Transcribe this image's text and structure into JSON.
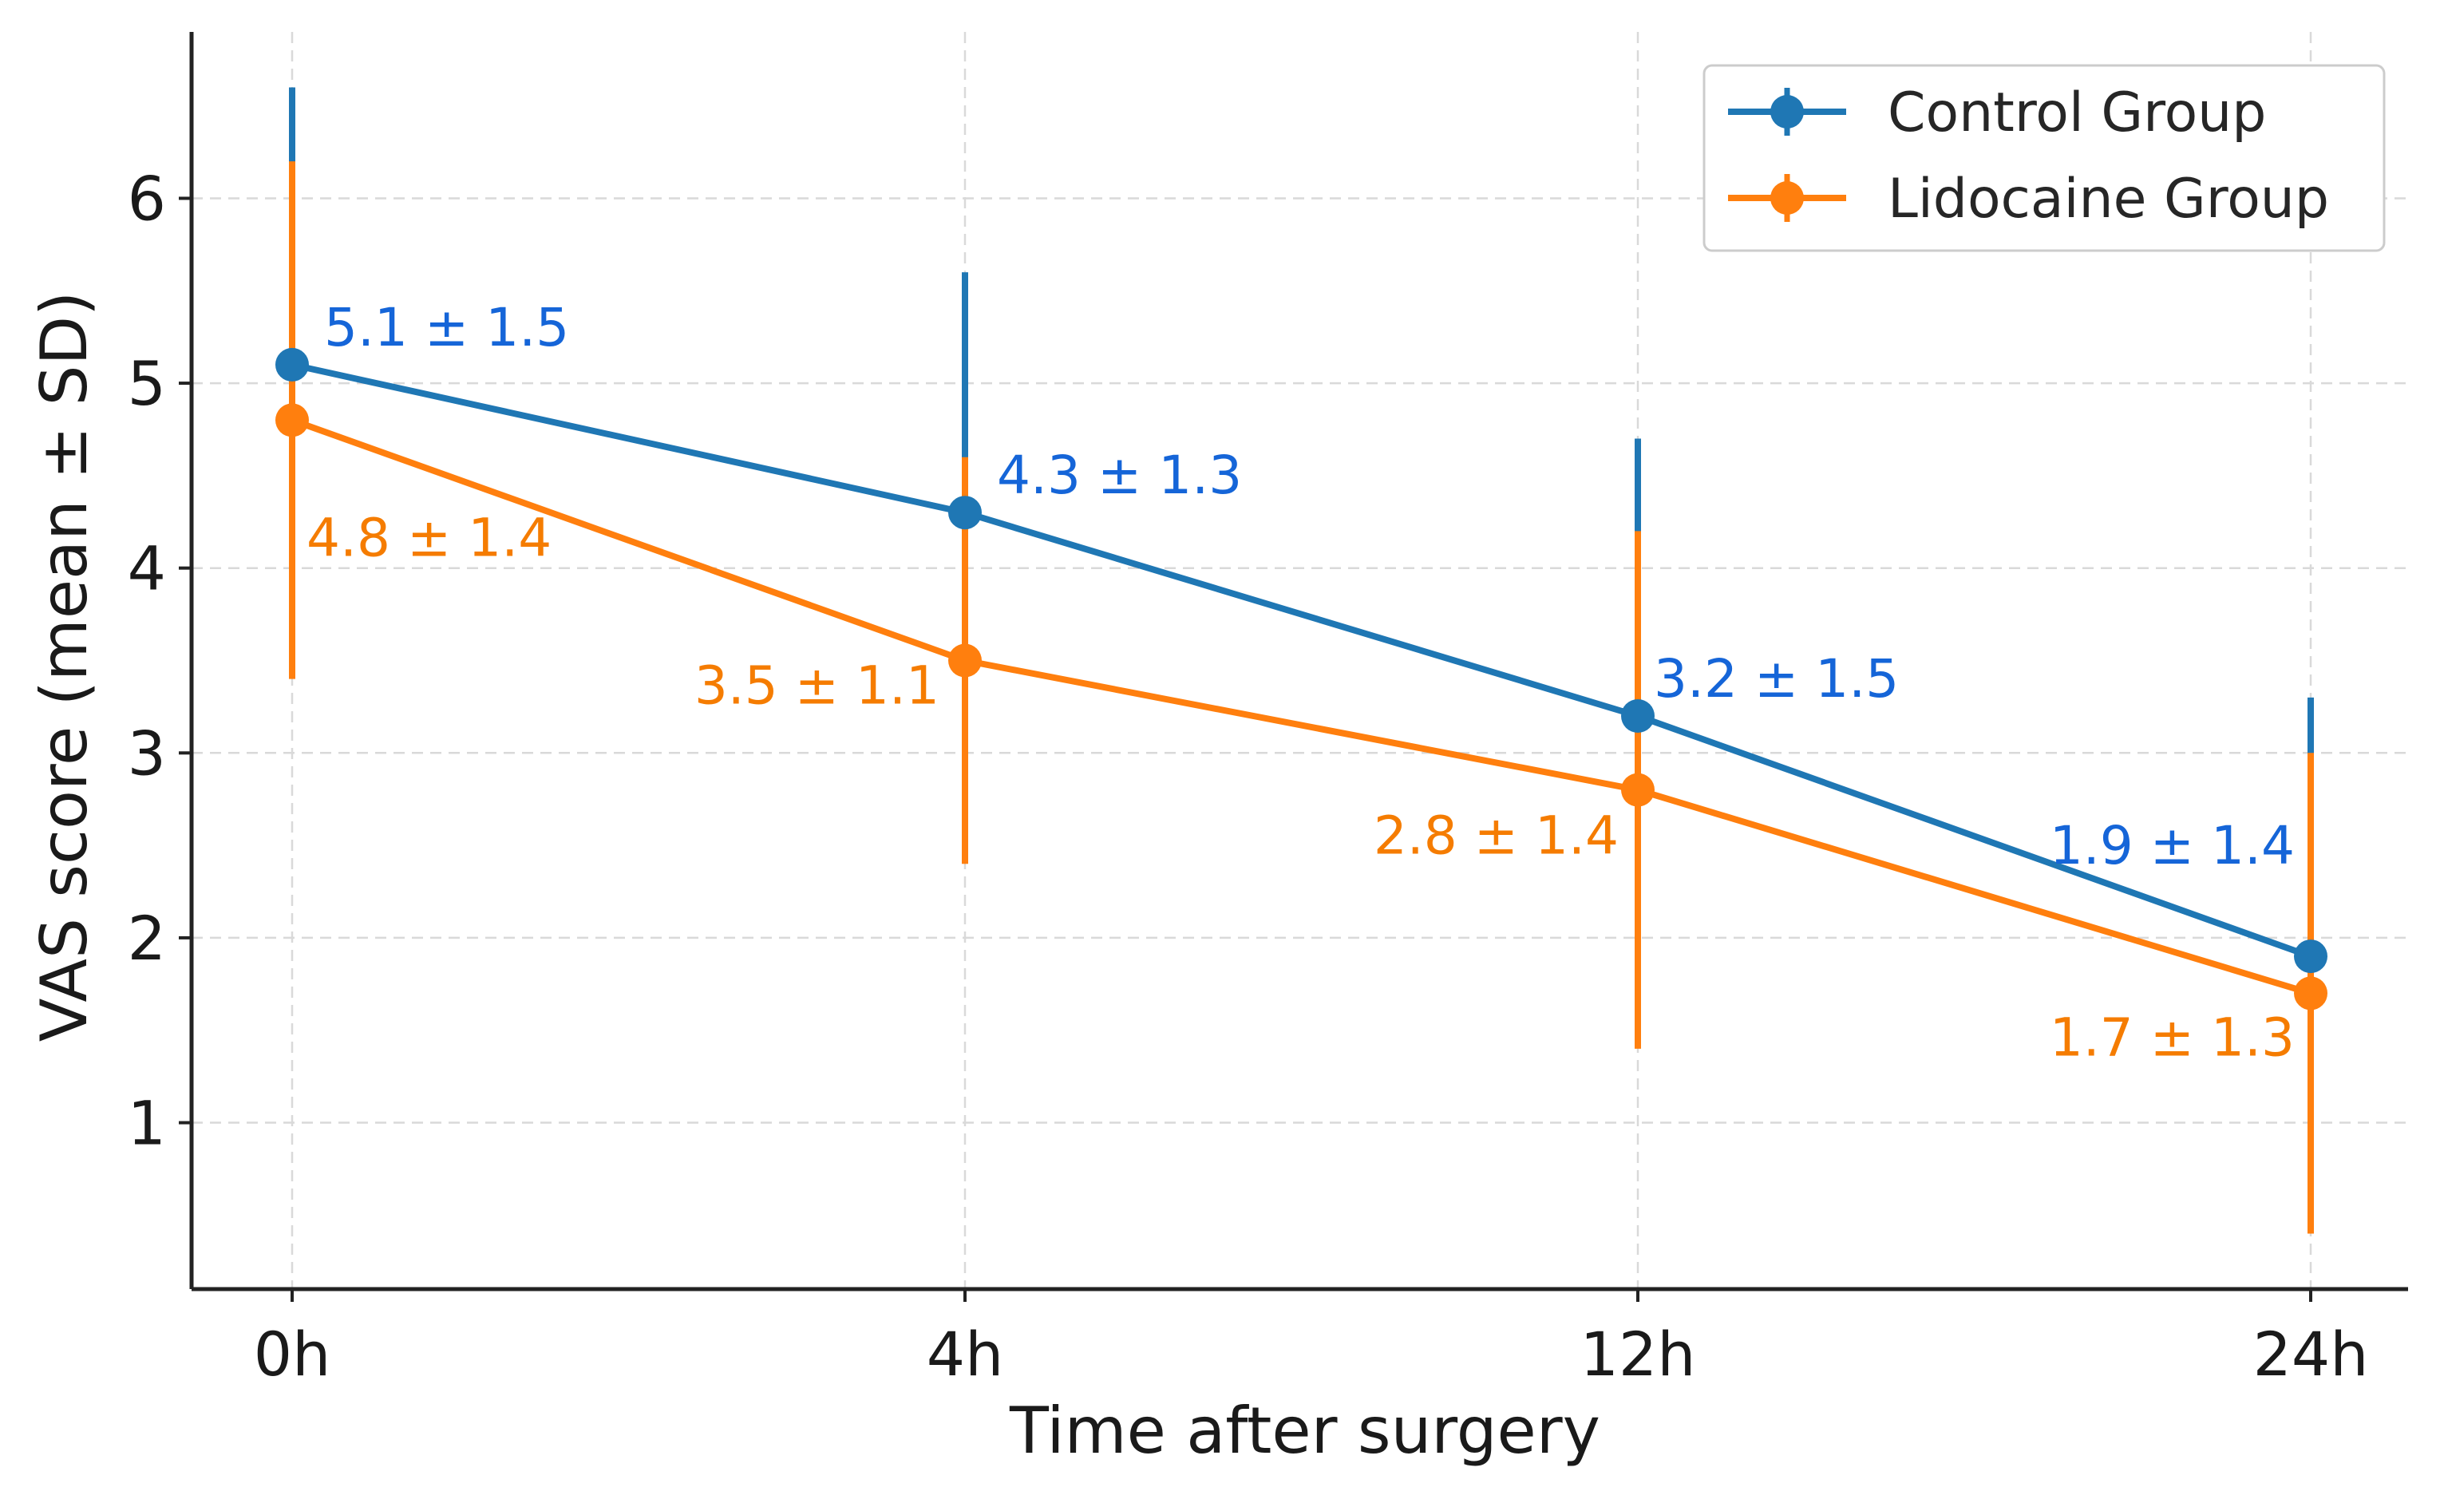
{
  "chart_data": {
    "type": "line",
    "title": "",
    "xlabel": "Time after surgery",
    "ylabel": "VAS score (mean ± SD)",
    "categories": [
      "0h",
      "4h",
      "12h",
      "24h"
    ],
    "yticks": [
      1,
      2,
      3,
      4,
      5,
      6
    ],
    "ylim": [
      0.1,
      6.9
    ],
    "grid": true,
    "legend_position": "top-right",
    "series": [
      {
        "name": "Control Group",
        "color": "#1f77b4",
        "label_color": "#1565d8",
        "values": [
          5.1,
          4.3,
          3.2,
          1.9
        ],
        "sd": [
          1.5,
          1.3,
          1.5,
          1.4
        ],
        "labels": [
          "5.1 ± 1.5",
          "4.3 ± 1.3",
          "3.2 ± 1.5",
          "1.9 ± 1.4"
        ]
      },
      {
        "name": "Lidocaine Group",
        "color": "#ff7f0e",
        "label_color": "#f57c00",
        "values": [
          4.8,
          3.5,
          2.8,
          1.7
        ],
        "sd": [
          1.4,
          1.1,
          1.4,
          1.3
        ],
        "labels": [
          "4.8 ± 1.4",
          "3.5 ± 1.1",
          "2.8 ± 1.4",
          "1.7 ± 1.3"
        ]
      }
    ]
  }
}
